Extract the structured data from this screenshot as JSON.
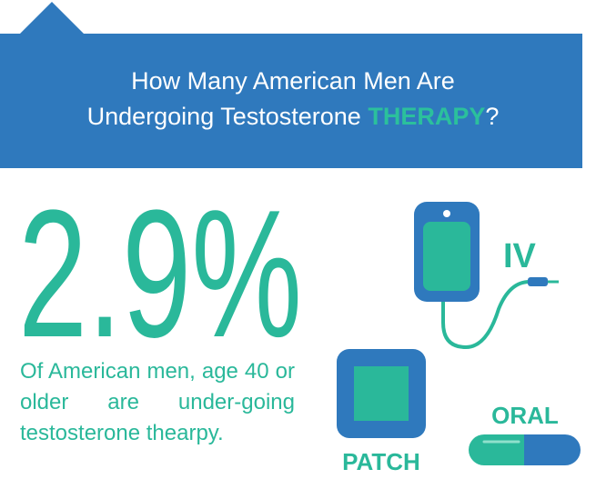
{
  "header": {
    "title_line1": "How Many American Men Are",
    "title_line2_start": "Undergoing Testosterone ",
    "title_highlight": "THERAPY",
    "title_end": "?"
  },
  "stat": {
    "value_text": "2.9%",
    "description": "Of American men, age 40 or older are under-going testosterone thearpy."
  },
  "icons": {
    "iv": "IV",
    "patch": "PATCH",
    "oral": "ORAL"
  }
}
